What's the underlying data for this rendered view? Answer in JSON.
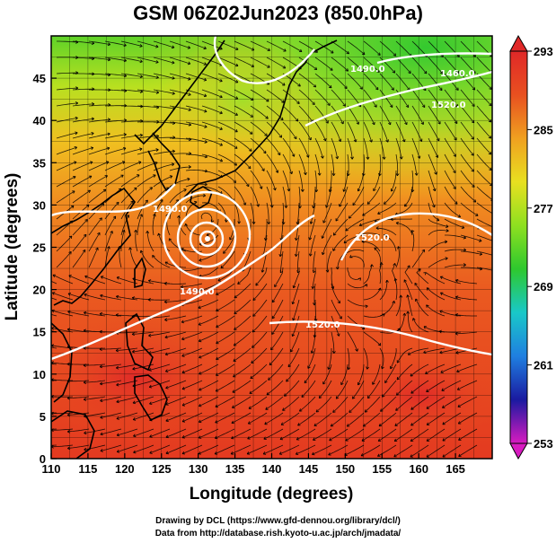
{
  "title": "GSM 06Z02Jun2023 (850.0hPa)",
  "credits": {
    "line1": "Drawing by DCL (https://www.gfd-dennou.org/library/dcl/)",
    "line2": "Data from http://database.rish.kyoto-u.ac.jp/arch/jmadata/"
  },
  "chart_data": {
    "type": "heatmap",
    "xlabel": "Longitude (degrees)",
    "ylabel": "Latitude  (degrees)",
    "xlim": [
      110,
      170
    ],
    "ylim": [
      0,
      50
    ],
    "x_ticks": [
      "110",
      "115",
      "120",
      "125",
      "130",
      "135",
      "140",
      "145",
      "150",
      "155",
      "160",
      "165"
    ],
    "y_ticks": [
      "0",
      "5",
      "10",
      "15",
      "20",
      "25",
      "30",
      "35",
      "40",
      "45"
    ],
    "colorbar": {
      "min": 253,
      "max": 293,
      "ticks": [
        "253",
        "261",
        "269",
        "277",
        "285",
        "293"
      ],
      "colors": [
        "#d81bc0",
        "#1a1aa0",
        "#1f7fe0",
        "#19c8c8",
        "#2ec82e",
        "#8ee020",
        "#e8e020",
        "#f0a020",
        "#e85020",
        "#e02828"
      ]
    },
    "contour_labels": [
      "1490.0",
      "1490.0",
      "1520.0",
      "1520.0",
      "1520.0",
      "1490.0",
      "1460.0"
    ],
    "cyclone_center": {
      "lon": 131,
      "lat": 28.5
    }
  }
}
